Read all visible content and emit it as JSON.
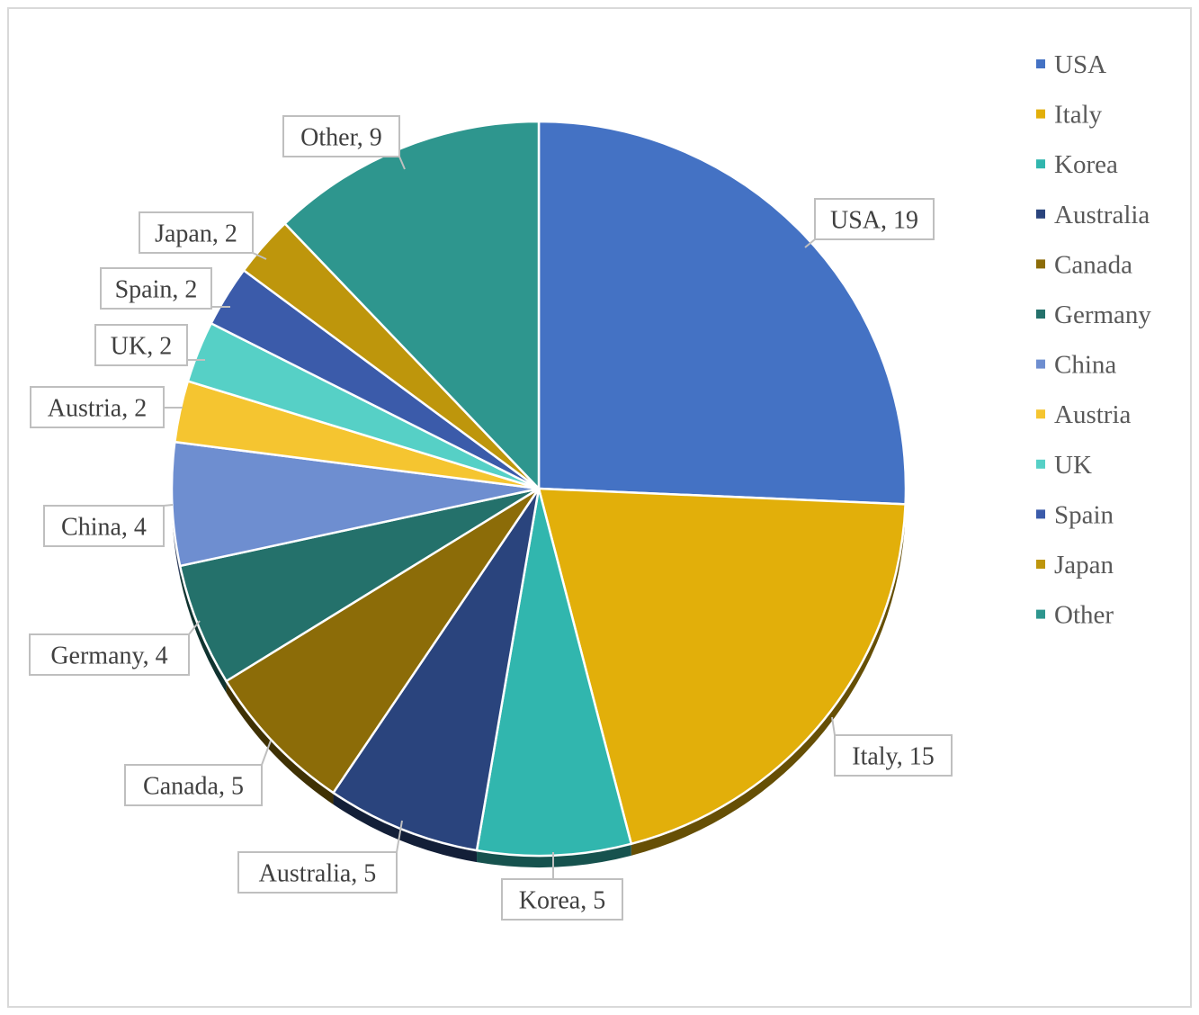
{
  "chart_data": {
    "type": "pie",
    "title": "",
    "legend_position": "right",
    "slices": [
      {
        "label": "USA",
        "value": 19,
        "color": "#4472C4"
      },
      {
        "label": "Italy",
        "value": 15,
        "color": "#E2AF0A"
      },
      {
        "label": "Korea",
        "value": 5,
        "color": "#31B6AE"
      },
      {
        "label": "Australia",
        "value": 5,
        "color": "#2A447D"
      },
      {
        "label": "Canada",
        "value": 5,
        "color": "#8C6C08"
      },
      {
        "label": "Germany",
        "value": 4,
        "color": "#24716B"
      },
      {
        "label": "China",
        "value": 4,
        "color": "#6E8ED0"
      },
      {
        "label": "Austria",
        "value": 2,
        "color": "#F5C530"
      },
      {
        "label": "UK",
        "value": 2,
        "color": "#56D0C6"
      },
      {
        "label": "Spain",
        "value": 2,
        "color": "#3B5BAA"
      },
      {
        "label": "Japan",
        "value": 2,
        "color": "#BE960C"
      },
      {
        "label": "Other",
        "value": 9,
        "color": "#2E968E"
      }
    ],
    "data_label_separator": ", "
  }
}
